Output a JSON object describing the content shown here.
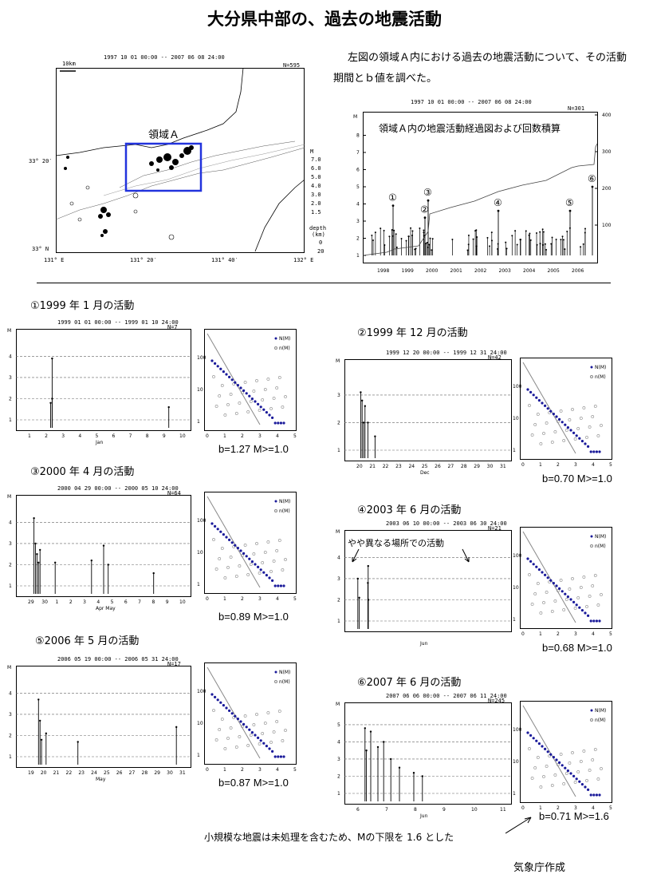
{
  "title": "大分県中部の、過去の地震活動",
  "description": "左図の領域Ａ内における過去の地震活動について、その活動期間とｂ値を調べた。",
  "map": {
    "period": "1997 10 01 00:00 -- 2007 06 08 24:00",
    "count": "N=595",
    "scale": "10km",
    "region_label": "領域Ａ",
    "lat_labels": [
      "33° 20′",
      "33° N"
    ],
    "lon_labels": [
      "131° E",
      "131° 20′",
      "131° 40′",
      "132° E"
    ],
    "legend_m_title": "M",
    "legend_m": [
      "7.0",
      "6.0",
      "5.0",
      "4.0",
      "3.0",
      "2.0",
      "1.5"
    ],
    "legend_depth_title": "depth",
    "legend_depth_unit": "(km)",
    "legend_depth": [
      "0",
      "20"
    ]
  },
  "timeline": {
    "period": "1997 10 01 00:00 -- 2007 06 08 24:00",
    "count": "N=301",
    "caption": "領域Ａ内の地震活動経過図および回数積算",
    "ylabel": "M",
    "left_ticks": [
      "1",
      "2",
      "3",
      "4",
      "5",
      "6",
      "7",
      "8"
    ],
    "right_ticks": [
      "100",
      "200",
      "300",
      "400"
    ],
    "years": [
      "1998",
      "1999",
      "2000",
      "2001",
      "2002",
      "2003",
      "2004",
      "2005",
      "2006"
    ],
    "markers": [
      "①",
      "②",
      "③",
      "④",
      "⑤",
      "⑥"
    ]
  },
  "panels": [
    {
      "heading": "①1999 年 1 月の活動",
      "period": "1999 01 01 00:00 -- 1999 01 10 24:00",
      "count": "N=7",
      "ylabel": "M",
      "yticks": [
        "1",
        "2",
        "3",
        "4"
      ],
      "xticks": [
        "1",
        "2",
        "3",
        "4",
        "5",
        "6",
        "7",
        "8",
        "9",
        "10"
      ],
      "xunit": "Jan",
      "bvalue": "b=1.27  M>=1.0"
    },
    {
      "heading": "②1999 年 12 月の活動",
      "period": "1999 12 20 00:00 -- 1999 12 31 24:00",
      "count": "N=42",
      "ylabel": "M",
      "yticks": [
        "1",
        "2",
        "3"
      ],
      "xticks": [
        "20",
        "21",
        "22",
        "23",
        "24",
        "25",
        "26",
        "27",
        "28",
        "29",
        "30",
        "31"
      ],
      "xunit": "Dec",
      "bvalue": "b=0.70  M>=1.0"
    },
    {
      "heading": "③2000 年 4 月の活動",
      "period": "2000 04 29 00:00 -- 2000 05 10 24:00",
      "count": "N=64",
      "ylabel": "M",
      "yticks": [
        "1",
        "2",
        "3",
        "4"
      ],
      "xticks": [
        "29",
        "30",
        "1",
        "2",
        "3",
        "4",
        "5",
        "6",
        "7",
        "8",
        "9",
        "10"
      ],
      "xunit": "Apr                    May",
      "bvalue": "b=0.89  M>=1.0"
    },
    {
      "heading": "④2003 年 6 月の活動",
      "period": "2003 06 10 00:00 -- 2003 06 30 24:00",
      "count": "N=21",
      "ylabel": "M",
      "yticks": [
        "1",
        "2",
        "3",
        "4"
      ],
      "xticks": [],
      "xunit": "Jun",
      "annotation": "やや異なる場所での活動",
      "bvalue": "b=0.68  M>=1.0"
    },
    {
      "heading": "⑤2006 年 5 月の活動",
      "period": "2006 05 19 00:00 -- 2006 05 31 24:00",
      "count": "N=17",
      "ylabel": "M",
      "yticks": [
        "1",
        "2",
        "3",
        "4"
      ],
      "xticks": [
        "19",
        "20",
        "21",
        "22",
        "23",
        "24",
        "25",
        "26",
        "27",
        "28",
        "29",
        "30",
        "31"
      ],
      "xunit": "May",
      "bvalue": "b=0.87  M>=1.0"
    },
    {
      "heading": "⑥2007 年 6 月の活動",
      "period": "2007 06 06 00:00 -- 2007 06 11 24:00",
      "count": "N=245",
      "ylabel": "M",
      "yticks": [
        "1",
        "2",
        "3",
        "4",
        "5"
      ],
      "xticks": [
        "6",
        "7",
        "8",
        "9",
        "10",
        "11"
      ],
      "xunit": "Jun",
      "bvalue": "b=0.71  M>=1.6"
    }
  ],
  "gr_legend": [
    "N(M)",
    "n(M)"
  ],
  "gr_yticks": [
    "1",
    "10",
    "100"
  ],
  "gr_xticks": [
    "0",
    "1",
    "2",
    "3",
    "4",
    "5"
  ],
  "note": "小規模な地震は未処理を含むため、Mの下限を 1.6 とした",
  "credit": "気象庁作成",
  "colors": {
    "cumulative_dot": "#1a1a9a",
    "region_box": "#2233dd"
  }
}
